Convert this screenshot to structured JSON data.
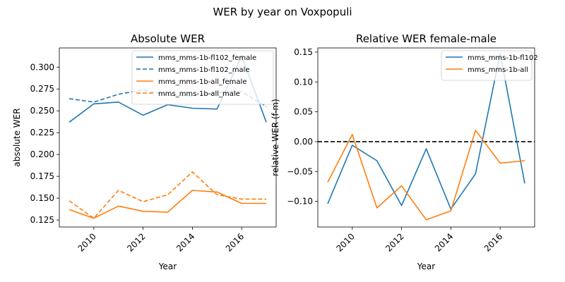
{
  "figure_title": "WER by year on Voxpopuli",
  "chart_data": [
    {
      "type": "line",
      "title": "Absolute WER",
      "xlabel": "Year",
      "ylabel": "absolute WER",
      "xlim": [
        2008.6,
        2017.4
      ],
      "ylim": [
        0.117,
        0.322
      ],
      "xticks": [
        2010,
        2012,
        2014,
        2016
      ],
      "yticks": [
        0.125,
        0.15,
        0.175,
        0.2,
        0.225,
        0.25,
        0.275,
        0.3
      ],
      "ytick_labels": [
        "0.125",
        "0.150",
        "0.175",
        "0.200",
        "0.225",
        "0.250",
        "0.275",
        "0.300"
      ],
      "legend_position": "top-right",
      "grid": false,
      "x": [
        2009,
        2010,
        2011,
        2012,
        2013,
        2014,
        2015,
        2016,
        2017
      ],
      "series": [
        {
          "name": "mms_mms-1b-fl102_female",
          "color": "#1f77b4",
          "dash": "solid",
          "values": [
            0.237,
            0.258,
            0.26,
            0.245,
            0.257,
            0.253,
            0.252,
            0.313,
            0.237
          ]
        },
        {
          "name": "mms_mms-1b-fl102_male",
          "color": "#1f77b4",
          "dash": "dashed",
          "values": [
            0.264,
            0.26,
            0.269,
            0.274,
            0.268,
            0.267,
            0.271,
            0.272,
            0.255
          ]
        },
        {
          "name": "mms_mms-1b-all_female",
          "color": "#ff7f0e",
          "dash": "solid",
          "values": [
            0.137,
            0.127,
            0.141,
            0.135,
            0.134,
            0.159,
            0.157,
            0.144,
            0.144
          ]
        },
        {
          "name": "mms_mms-1b-all_male",
          "color": "#ff7f0e",
          "dash": "dashed",
          "values": [
            0.147,
            0.127,
            0.159,
            0.146,
            0.154,
            0.18,
            0.154,
            0.149,
            0.149
          ]
        }
      ]
    },
    {
      "type": "line",
      "title": "Relative WER female-male",
      "xlabel": "Year",
      "ylabel": "relative WER (f-m)",
      "xlim": [
        2008.6,
        2017.4
      ],
      "ylim": [
        -0.143,
        0.157
      ],
      "xticks": [
        2010,
        2012,
        2014,
        2016
      ],
      "yticks": [
        -0.1,
        -0.05,
        0.0,
        0.05,
        0.1,
        0.15
      ],
      "ytick_labels": [
        "−0.10",
        "−0.05",
        "0.00",
        "0.05",
        "0.10",
        "0.15"
      ],
      "legend_position": "top-right",
      "grid": false,
      "reference_line": {
        "y": 0,
        "color": "#000000",
        "dash": "dashed"
      },
      "x": [
        2009,
        2010,
        2011,
        2012,
        2013,
        2014,
        2015,
        2016,
        2017
      ],
      "series": [
        {
          "name": "mms_mms-1b-fl102",
          "color": "#1f77b4",
          "dash": "solid",
          "values": [
            -0.104,
            -0.006,
            -0.032,
            -0.107,
            -0.012,
            -0.113,
            -0.054,
            0.148,
            -0.07
          ]
        },
        {
          "name": "mms_mms-1b-all",
          "color": "#ff7f0e",
          "dash": "solid",
          "values": [
            -0.068,
            0.012,
            -0.111,
            -0.074,
            -0.131,
            -0.116,
            0.019,
            -0.036,
            -0.032
          ]
        }
      ]
    }
  ]
}
